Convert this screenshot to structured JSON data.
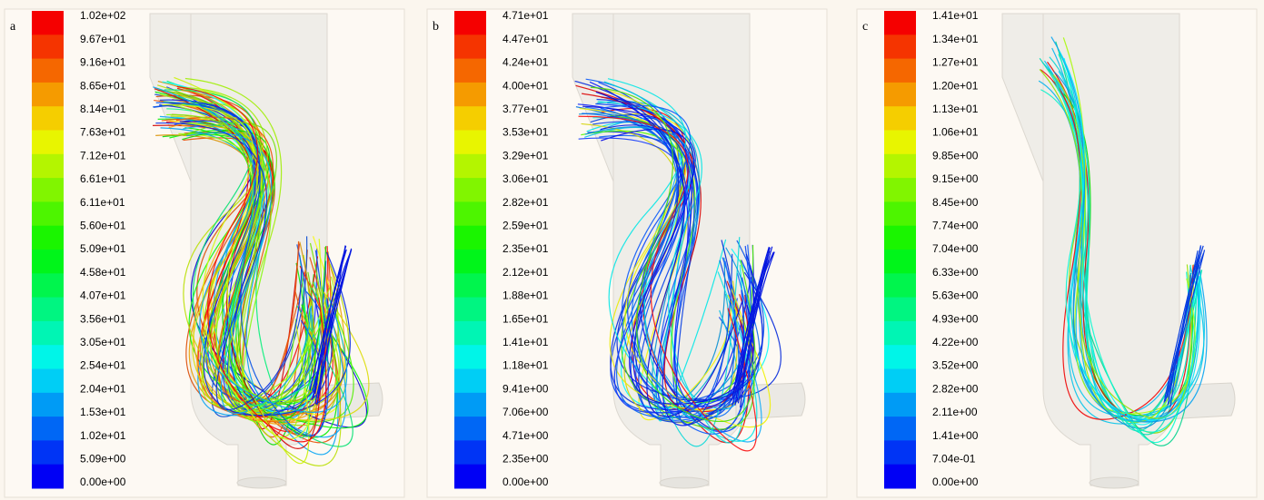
{
  "panels": [
    {
      "label": "a",
      "legend": [
        "1.02e+02",
        "9.67e+01",
        "9.16e+01",
        "8.65e+01",
        "8.14e+01",
        "7.63e+01",
        "7.12e+01",
        "6.61e+01",
        "6.11e+01",
        "5.60e+01",
        "5.09e+01",
        "4.58e+01",
        "4.07e+01",
        "3.56e+01",
        "3.05e+01",
        "2.54e+01",
        "2.04e+01",
        "1.53e+01",
        "1.02e+01",
        "5.09e+00",
        "0.00e+00"
      ]
    },
    {
      "label": "b",
      "legend": [
        "4.71e+01",
        "4.47e+01",
        "4.24e+01",
        "4.00e+01",
        "3.77e+01",
        "3.53e+01",
        "3.29e+01",
        "3.06e+01",
        "2.82e+01",
        "2.59e+01",
        "2.35e+01",
        "2.12e+01",
        "1.88e+01",
        "1.65e+01",
        "1.41e+01",
        "1.18e+01",
        "9.41e+00",
        "7.06e+00",
        "4.71e+00",
        "2.35e+00",
        "0.00e+00"
      ]
    },
    {
      "label": "c",
      "legend": [
        "1.41e+01",
        "1.34e+01",
        "1.27e+01",
        "1.20e+01",
        "1.13e+01",
        "1.06e+01",
        "9.85e+00",
        "9.15e+00",
        "8.45e+00",
        "7.74e+00",
        "7.04e+00",
        "6.33e+00",
        "5.63e+00",
        "4.93e+00",
        "4.22e+00",
        "3.52e+00",
        "2.82e+00",
        "2.11e+00",
        "1.41e+00",
        "7.04e-01",
        "0.00e+00"
      ]
    }
  ]
}
